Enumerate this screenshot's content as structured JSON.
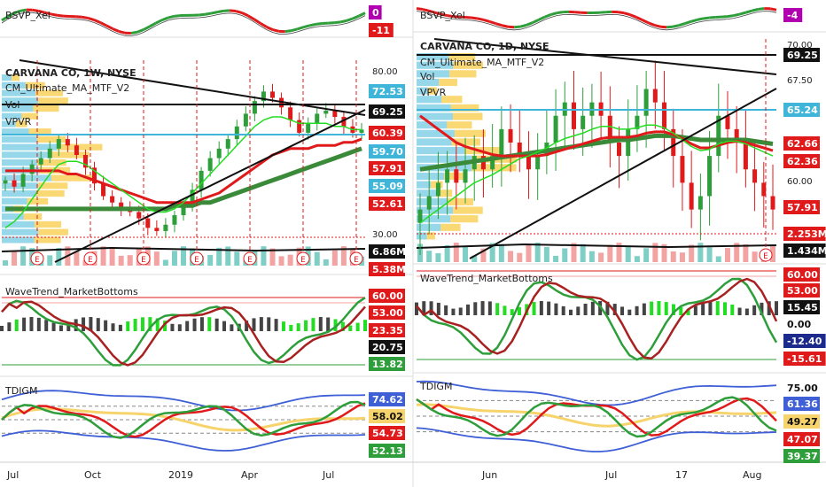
{
  "colors": {
    "green": "#2e9e3a",
    "red": "#e0191b",
    "black": "#111111",
    "blue": "#3f5fd6",
    "navy": "#1b2a8c",
    "cyan": "#3fb6d9",
    "orange": "#f6b800",
    "purple": "#b000b0",
    "lightred": "#f4a3a3",
    "teal": "#7fcfc6",
    "brightgreen": "#22dd22"
  },
  "chart_data": [
    {
      "id": "weekly",
      "type": "line",
      "title": "CARVANA CO, 1W, NYSE",
      "indicators": [
        "CM_Ultimate_MA_MTF_V2",
        "Vol",
        "VPVR"
      ],
      "x_tick_labels": [
        "Jul",
        "Oct",
        "2019",
        "Apr",
        "Jul"
      ],
      "y_tick_labels": [
        "80.00",
        "30.00"
      ],
      "price_labels": [
        {
          "text": "72.53",
          "bg": "#3fb6d9"
        },
        {
          "text": "69.25",
          "bg": "#111111"
        },
        {
          "text": "60.39",
          "bg": "#e0191b"
        },
        {
          "text": "59.70",
          "bg": "#3fb6d9"
        },
        {
          "text": "57.91",
          "bg": "#e0191b"
        },
        {
          "text": "55.09",
          "bg": "#3fb6d9"
        },
        {
          "text": "52.61",
          "bg": "#e0191b"
        },
        {
          "text": "6.86M",
          "bg": "#111111"
        },
        {
          "text": "5.38M",
          "bg": "#e0191b"
        }
      ],
      "earnings_marker": "E",
      "ylim": [
        22,
        84
      ],
      "close": [
        45,
        43,
        47,
        50,
        52,
        55,
        58,
        56,
        53,
        49,
        44,
        40,
        38,
        36,
        35,
        33,
        30,
        29,
        31,
        34,
        37,
        42,
        48,
        52,
        55,
        58,
        62,
        66,
        70,
        73,
        71,
        68,
        64,
        60,
        63,
        66,
        67,
        65,
        62,
        60,
        61
      ],
      "ma_fast_green": [
        30,
        32,
        35,
        39,
        43,
        47,
        50,
        51,
        51,
        50,
        48,
        46,
        44,
        42,
        40,
        38,
        36,
        35,
        35,
        36,
        38,
        41,
        44,
        47,
        50,
        53,
        56,
        59,
        62,
        64,
        65,
        65,
        64,
        63,
        63,
        63,
        63,
        62,
        62,
        61,
        61
      ],
      "ma_red": [
        48,
        48,
        48,
        48,
        48,
        48,
        48,
        47,
        47,
        46,
        45,
        44,
        43,
        42,
        41,
        40,
        39,
        38,
        38,
        38,
        38,
        38,
        39,
        40,
        41,
        43,
        45,
        47,
        49,
        51,
        53,
        54,
        55,
        55,
        55,
        56,
        56,
        56,
        57,
        57,
        58
      ],
      "ma_slow_darkgreen": [
        36,
        36,
        36,
        36,
        36,
        36,
        36,
        36,
        36,
        36,
        36,
        36,
        36,
        36,
        36,
        36,
        36,
        36,
        36,
        37,
        37,
        37,
        38,
        38,
        39,
        40,
        41,
        42,
        43,
        44,
        45,
        46,
        47,
        48,
        49,
        50,
        51,
        52,
        53,
        54,
        55
      ]
    },
    {
      "id": "daily",
      "type": "line",
      "title": "CARVANA CO, 1D, NYSE",
      "indicators": [
        "CM_Ultimate_MA_MTF_V2",
        "Vol",
        "VPVR"
      ],
      "x_tick_labels": [
        "Jun",
        "Jul",
        "17",
        "Aug"
      ],
      "y_tick_labels": [
        "70.00",
        "67.50",
        "60.00"
      ],
      "price_labels": [
        {
          "text": "69.25",
          "bg": "#111111"
        },
        {
          "text": "65.24",
          "bg": "#3fb6d9"
        },
        {
          "text": "62.66",
          "bg": "#e0191b"
        },
        {
          "text": "62.36",
          "bg": "#e0191b"
        },
        {
          "text": "57.91",
          "bg": "#e0191b"
        },
        {
          "text": "2.253M",
          "bg": "#e0191b"
        },
        {
          "text": "1.434M",
          "bg": "#111111"
        }
      ],
      "earnings_marker": "E",
      "ylim": [
        55,
        71
      ],
      "close": [
        58,
        59,
        60,
        61,
        60,
        61,
        62,
        61,
        62,
        64,
        63,
        62,
        61,
        62,
        63,
        65,
        66,
        64,
        65,
        66,
        65,
        63,
        62,
        64,
        65,
        67,
        66,
        64,
        62,
        60,
        58,
        59,
        62,
        65,
        64,
        63,
        61,
        60,
        59,
        58
      ],
      "ma_fast_green": [
        57,
        57.5,
        58,
        58.5,
        59,
        59.5,
        60,
        60.3,
        60.6,
        61,
        61.4,
        61.8,
        62,
        62.3,
        62.6,
        63,
        63.3,
        63.5,
        63.7,
        64,
        64.2,
        64.2,
        64,
        64,
        64.1,
        64.3,
        64.3,
        64.1,
        63.7,
        63.2,
        62.7,
        62.4,
        62.5,
        62.9,
        63.1,
        63.1,
        62.9,
        62.6,
        62.3,
        62
      ],
      "ma_red": [
        65,
        64.5,
        64,
        63.5,
        63,
        62.7,
        62.5,
        62.3,
        62.1,
        62,
        62,
        62,
        62,
        62,
        62.1,
        62.3,
        62.5,
        62.7,
        62.9,
        63.1,
        63.3,
        63.4,
        63.4,
        63.4,
        63.5,
        63.7,
        63.8,
        63.8,
        63.6,
        63.3,
        62.9,
        62.6,
        62.6,
        62.8,
        63,
        63.1,
        63,
        62.8,
        62.6,
        62.4
      ],
      "ma_slow_darkgreen": [
        61,
        61.1,
        61.2,
        61.3,
        61.4,
        61.5,
        61.6,
        61.7,
        61.8,
        61.9,
        62,
        62.1,
        62.2,
        62.3,
        62.4,
        62.5,
        62.6,
        62.7,
        62.8,
        62.9,
        63,
        63.1,
        63.2,
        63.2,
        63.3,
        63.4,
        63.5,
        63.5,
        63.5,
        63.4,
        63.3,
        63.2,
        63.2,
        63.2,
        63.2,
        63.2,
        63.2,
        63.1,
        63,
        62.9
      ]
    }
  ],
  "panels": {
    "left_bsvp": {
      "label": "BSVP_Xel",
      "values": [
        {
          "text": "0",
          "bg": "#b000b0"
        },
        {
          "text": "-11",
          "bg": "#e0191b"
        }
      ]
    },
    "right_bsvp": {
      "label": "BSVP_Xel",
      "values": [
        {
          "text": "-4",
          "bg": "#b000b0"
        }
      ]
    },
    "left_wave": {
      "label": "WaveTrend_MarketBottoms",
      "values": [
        {
          "text": "60.00",
          "bg": "#e0191b"
        },
        {
          "text": "53.00",
          "bg": "#e0191b"
        },
        {
          "text": "23.35",
          "bg": "#e0191b"
        },
        {
          "text": "20.75",
          "bg": "#111111"
        },
        {
          "text": "13.82",
          "bg": "#2e9e3a"
        }
      ]
    },
    "right_wave": {
      "label": "WaveTrend_MarketBottoms",
      "values": [
        {
          "text": "60.00",
          "bg": "#e0191b"
        },
        {
          "text": "53.00",
          "bg": "#e0191b"
        },
        {
          "text": "15.45",
          "bg": "#111111"
        },
        {
          "text": "0.00",
          "bg": "#ffffff"
        },
        {
          "text": "-12.40",
          "bg": "#1b2a8c"
        },
        {
          "text": "-15.61",
          "bg": "#e0191b"
        }
      ]
    },
    "left_tdigm": {
      "label": "TDIGM",
      "values": [
        {
          "text": "74.62",
          "bg": "#3f5fd6"
        },
        {
          "text": "58.02",
          "bg": "#f6d36b"
        },
        {
          "text": "54.73",
          "bg": "#e0191b"
        },
        {
          "text": "52.13",
          "bg": "#2e9e3a"
        }
      ]
    },
    "right_tdigm": {
      "label": "TDIGM",
      "values": [
        {
          "text": "75.00",
          "bg": "#ffffff"
        },
        {
          "text": "61.36",
          "bg": "#3f5fd6"
        },
        {
          "text": "49.27",
          "bg": "#f6d36b"
        },
        {
          "text": "47.07",
          "bg": "#e0191b"
        },
        {
          "text": "39.37",
          "bg": "#2e9e3a"
        }
      ]
    }
  }
}
